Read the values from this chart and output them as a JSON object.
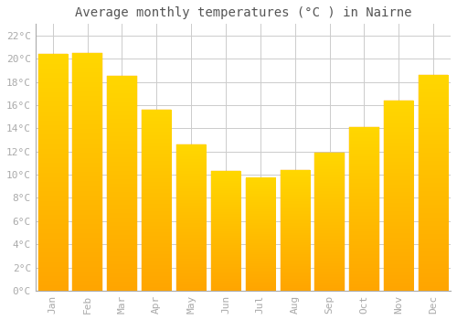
{
  "title": "Average monthly temperatures (°C ) in Nairne",
  "months": [
    "Jan",
    "Feb",
    "Mar",
    "Apr",
    "May",
    "Jun",
    "Jul",
    "Aug",
    "Sep",
    "Oct",
    "Nov",
    "Dec"
  ],
  "values": [
    20.4,
    20.5,
    18.5,
    15.6,
    12.6,
    10.3,
    9.7,
    10.4,
    11.9,
    14.1,
    16.4,
    18.6
  ],
  "bar_color_top": "#FFD700",
  "bar_color_bottom": "#FFA500",
  "bar_edge_color": "#FFA500",
  "background_color": "#FFFFFF",
  "grid_color": "#CCCCCC",
  "tick_label_color": "#AAAAAA",
  "title_color": "#555555",
  "ylim": [
    0,
    23
  ],
  "yticks": [
    0,
    2,
    4,
    6,
    8,
    10,
    12,
    14,
    16,
    18,
    20,
    22
  ],
  "ytick_labels": [
    "0°C",
    "2°C",
    "4°C",
    "6°C",
    "8°C",
    "10°C",
    "12°C",
    "14°C",
    "16°C",
    "18°C",
    "20°C",
    "22°C"
  ],
  "title_fontsize": 10,
  "tick_fontsize": 8,
  "font_family": "monospace",
  "bar_width": 0.85
}
